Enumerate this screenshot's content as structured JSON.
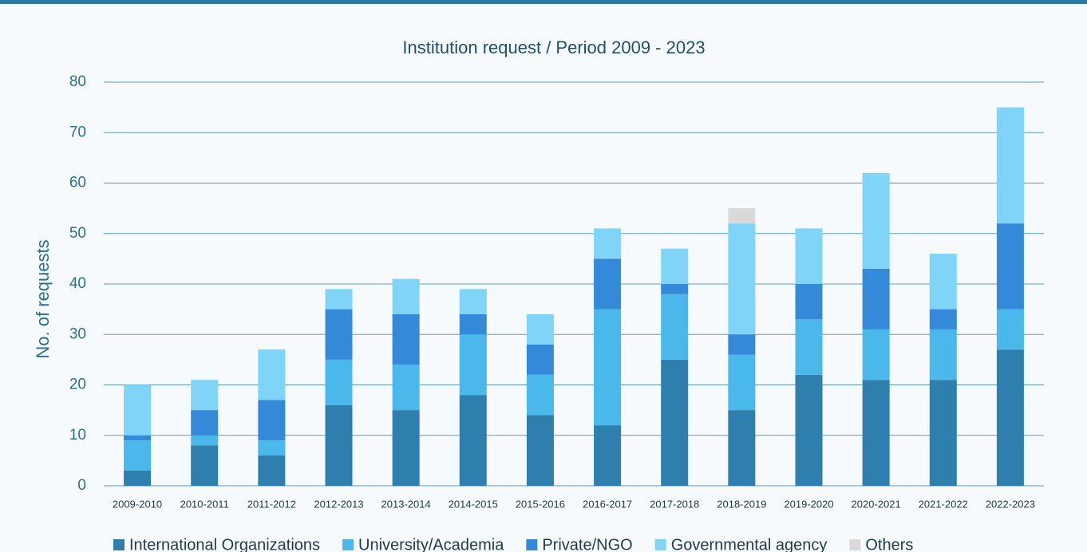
{
  "chart_data": {
    "type": "stacked_bar",
    "title": "Institution request / Period 2009 - 2023",
    "ylabel": "No. of requests",
    "categories": [
      "2009-2010",
      "2010-2011",
      "2011-2012",
      "2012-2013",
      "2013-2014",
      "2014-2015",
      "2015-2016",
      "2016-2017",
      "2017-2018",
      "2018-2019",
      "2019-2020",
      "2020-2021",
      "2021-2022",
      "2022-2023"
    ],
    "series": [
      {
        "name": "International Organizations",
        "color": "#2e7fae",
        "values": [
          3,
          8,
          6,
          16,
          15,
          18,
          14,
          12,
          25,
          15,
          22,
          21,
          21,
          27
        ]
      },
      {
        "name": "University/Academia",
        "color": "#4ab8ea",
        "values": [
          6,
          2,
          3,
          9,
          9,
          12,
          8,
          23,
          13,
          11,
          11,
          10,
          10,
          8
        ]
      },
      {
        "name": "Private/NGO",
        "color": "#3589d9",
        "values": [
          1,
          5,
          8,
          10,
          10,
          4,
          6,
          10,
          2,
          4,
          7,
          12,
          4,
          17
        ]
      },
      {
        "name": "Governmental agency",
        "color": "#80d4f7",
        "values": [
          10,
          6,
          10,
          4,
          7,
          5,
          6,
          6,
          7,
          22,
          11,
          19,
          11,
          23
        ]
      },
      {
        "name": "Others",
        "color": "#d9d9d9",
        "values": [
          0,
          0,
          0,
          0,
          0,
          0,
          0,
          0,
          0,
          3,
          0,
          0,
          0,
          0
        ]
      }
    ],
    "ylim": [
      0,
      80
    ],
    "yticks": [
      0,
      10,
      20,
      30,
      40,
      50,
      60,
      70,
      80
    ],
    "grid": true
  }
}
